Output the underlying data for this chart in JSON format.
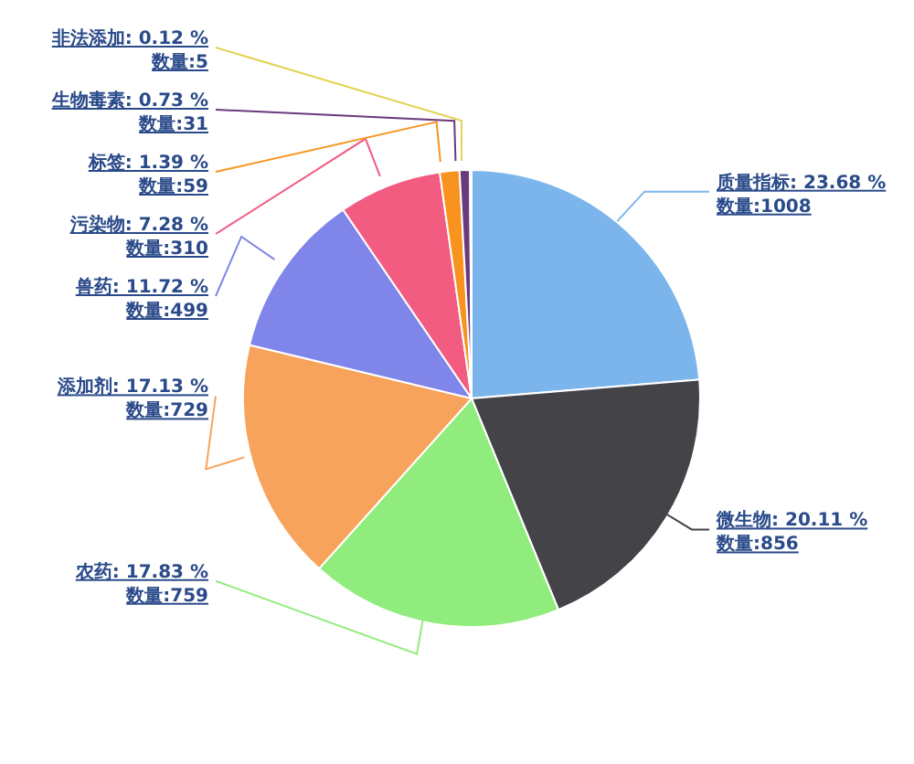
{
  "chart_data": {
    "type": "pie",
    "categories": [
      "质量指标",
      "微生物",
      "农药",
      "添加剂",
      "兽药",
      "污染物",
      "标签",
      "生物毒素",
      "非法添加"
    ],
    "values": [
      1008,
      856,
      759,
      729,
      499,
      310,
      59,
      31,
      5
    ],
    "colors": [
      "#7cb5ec",
      "#434348",
      "#90ed7d",
      "#f7a35c",
      "#8085e9",
      "#f15c80",
      "#f7931e",
      "#6b3a7d",
      "#e4d354"
    ],
    "value_labels": [
      "23.68 %\n数量:1008",
      "20.11 %\n数量:856",
      "17.83 %\n数量:759",
      "17.13 %\n数量:729",
      "11.72 %\n数量:499",
      "7.28 %\n数量:310",
      "1.39 %\n数量:59",
      "0.73 %\n数量:31",
      "0.12 %\n数量:5"
    ],
    "legend": false
  }
}
